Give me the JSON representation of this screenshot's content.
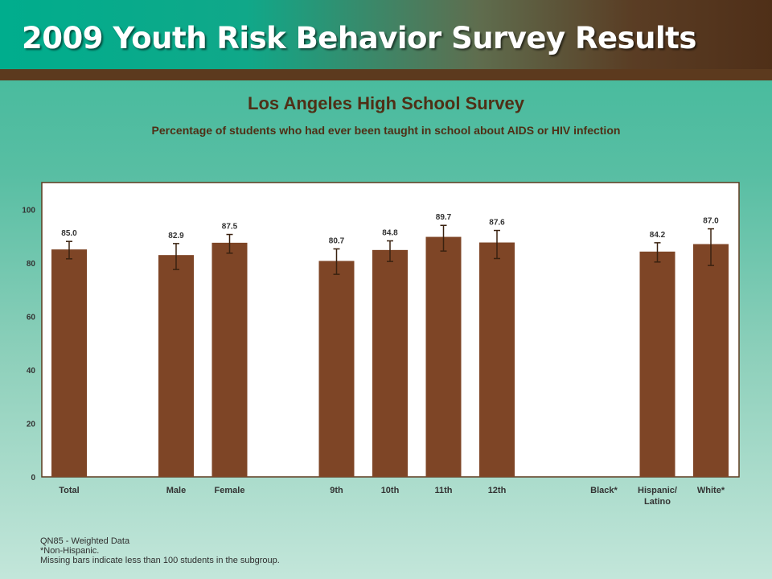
{
  "header": {
    "title": "2009 Youth Risk Behavior Survey Results"
  },
  "colors": {
    "bar": "#7e4526",
    "error_bar": "#3a2210",
    "plot_background": "#ffffff",
    "plot_border": "#5c3a1e",
    "label_text": "#333333"
  },
  "chart_data": {
    "type": "bar",
    "title": "Los Angeles High School Survey",
    "subtitle": "Percentage of students who had ever been taught in school about AIDS or HIV infection",
    "xlabel": "",
    "ylabel": "",
    "ylim": [
      0,
      110
    ],
    "yticks": [
      0,
      20,
      40,
      60,
      80,
      100
    ],
    "grid": false,
    "legend": "none",
    "categories": [
      "Total",
      "",
      "Male",
      "Female",
      "",
      "9th",
      "10th",
      "11th",
      "12th",
      "",
      "Black*",
      "Hispanic/ Latino",
      "White*"
    ],
    "values": [
      85.0,
      null,
      82.9,
      87.5,
      null,
      80.7,
      84.8,
      89.7,
      87.6,
      null,
      null,
      84.2,
      87.0
    ],
    "value_labels": [
      "85.0",
      "",
      "82.9",
      "87.5",
      "",
      "80.7",
      "84.8",
      "89.7",
      "87.6",
      "",
      "",
      "84.2",
      "87.0"
    ],
    "ci_lower": [
      81.5,
      null,
      77.5,
      83.6,
      null,
      75.7,
      80.5,
      84.4,
      81.6,
      null,
      null,
      80.3,
      79.0
    ],
    "ci_upper": [
      88.0,
      null,
      87.2,
      90.6,
      null,
      85.2,
      88.2,
      94.0,
      92.1,
      null,
      null,
      87.5,
      92.7
    ]
  },
  "footnotes": {
    "line1": "QN85 - Weighted Data",
    "line2": "*Non-Hispanic.",
    "line3": "Missing bars indicate less than 100 students in the subgroup."
  }
}
